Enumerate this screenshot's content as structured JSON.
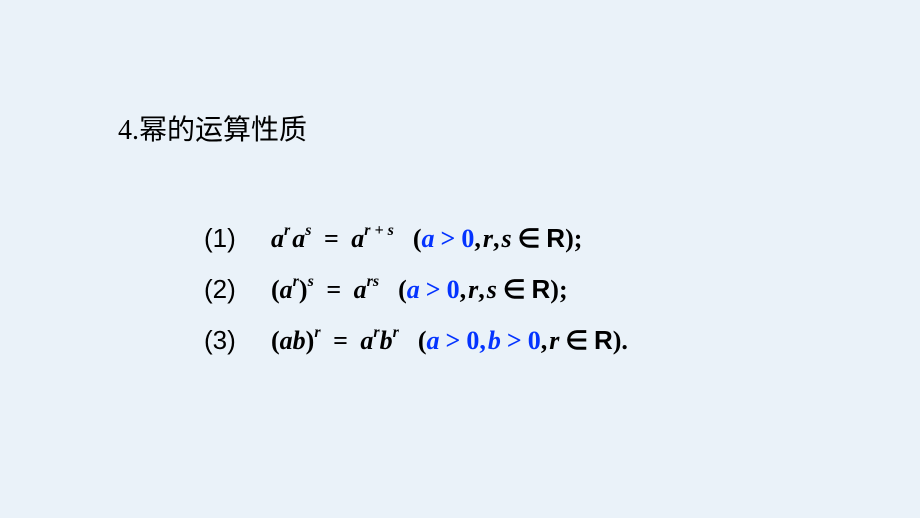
{
  "colors": {
    "background": "#eaf2f9",
    "text": "#000000",
    "highlight": "#0433ff"
  },
  "typography": {
    "heading_fontsize": 28,
    "formula_fontsize": 26,
    "superscript_fontsize": 16,
    "heading_font": "SimSun",
    "formula_font": "Times New Roman"
  },
  "heading": "4.幂的运算性质",
  "rows": [
    {
      "label": "(1)",
      "lhs_base1": "a",
      "lhs_exp1": "r",
      "lhs_base2": "a",
      "lhs_exp2": "s",
      "eq": "=",
      "rhs_base": "a",
      "rhs_exp": "r + s",
      "cond_open": "(",
      "cond_a": "a",
      "cond_gt": ">",
      "cond_zero": "0",
      "comma1": ",",
      "cond_r": "r",
      "comma2": ",",
      "cond_s": "s",
      "in": "∈",
      "set": "R",
      "close": ");"
    },
    {
      "label": "(2)",
      "lhs_open": "(",
      "lhs_base": "a",
      "lhs_inner_exp": "r",
      "lhs_close": ")",
      "lhs_outer_exp": "s",
      "eq": "=",
      "rhs_base": "a",
      "rhs_exp": "rs",
      "cond_open": "(",
      "cond_a": "a",
      "cond_gt": ">",
      "cond_zero": "0",
      "comma1": ",",
      "cond_r": "r",
      "comma2": ",",
      "cond_s": "s",
      "in": "∈",
      "set": "R",
      "close": ");"
    },
    {
      "label": "(3)",
      "lhs_open": "(",
      "lhs_a": "a",
      "lhs_b": "b",
      "lhs_close": ")",
      "lhs_exp": "r",
      "eq": "=",
      "rhs_a": "a",
      "rhs_a_exp": "r",
      "rhs_b": "b",
      "rhs_b_exp": "r",
      "cond_open": "(",
      "cond_a": "a",
      "cond_gt": ">",
      "cond_zero": "0",
      "commaA": ",",
      "cond_b": "b",
      "cond_gt2": ">",
      "cond_zero2": "0",
      "commaB": ",",
      "cond_r": "r",
      "in": "∈",
      "set": "R",
      "close": ")."
    }
  ]
}
